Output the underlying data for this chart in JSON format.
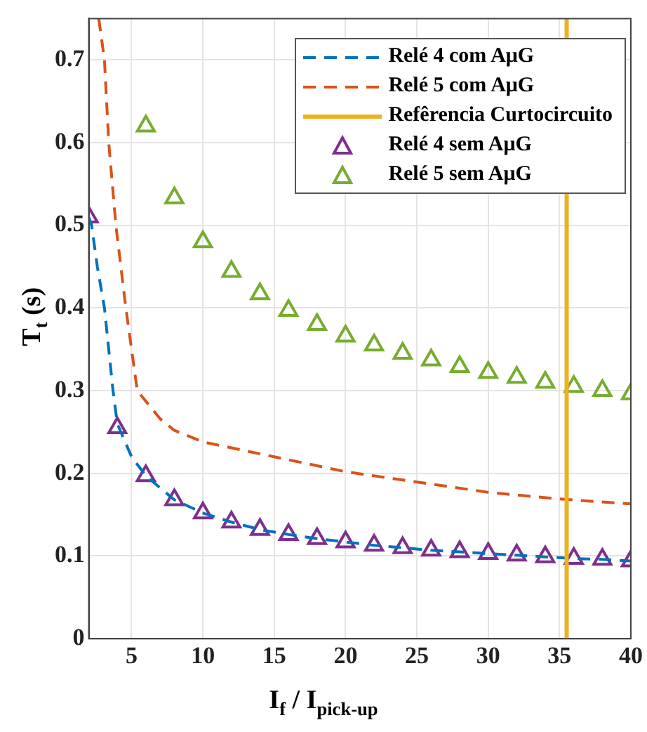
{
  "chart_data": {
    "type": "line",
    "xlabel": "I$_{f}$ / I$_{pick-up}$",
    "ylabel": "T$_{t}$ (s)",
    "xlim": [
      2,
      40
    ],
    "xticks": [
      5,
      10,
      15,
      20,
      25,
      30,
      35,
      40
    ],
    "ylim": [
      0,
      0.75
    ],
    "yticks": [
      0,
      0.1,
      0.2,
      0.3,
      0.4,
      0.5,
      0.6,
      0.7
    ],
    "grid": true,
    "legend": "top right",
    "series": [
      {
        "name": "Relé 4 com AμG",
        "line_style": "dashed",
        "color": "#0072bd",
        "x": [
          2,
          2.2,
          2.6,
          3.1,
          3.7,
          4,
          5,
          6,
          8,
          10,
          12,
          14,
          16,
          18,
          20,
          22,
          24,
          26,
          28,
          30,
          32,
          34,
          36,
          38,
          40
        ],
        "values": [
          0.51,
          0.5,
          0.45,
          0.4,
          0.3,
          0.26,
          0.22,
          0.197,
          0.168,
          0.152,
          0.141,
          0.132,
          0.126,
          0.121,
          0.117,
          0.113,
          0.11,
          0.107,
          0.105,
          0.103,
          0.101,
          0.099,
          0.097,
          0.096,
          0.094
        ]
      },
      {
        "name": "Relé 5 com AμG",
        "line_style": "dashed",
        "color": "#d95319",
        "x": [
          2.7,
          3.1,
          3.4,
          3.9,
          4.6,
          5.4,
          7,
          8,
          10,
          15,
          20,
          30,
          35,
          40
        ],
        "values": [
          0.75,
          0.7,
          0.6,
          0.5,
          0.4,
          0.3,
          0.266,
          0.252,
          0.238,
          0.22,
          0.202,
          0.177,
          0.169,
          0.163
        ]
      },
      {
        "name": "Relé 4 sem AμG",
        "type": "scatter",
        "marker": "triangle",
        "color": "#7e2f8e",
        "x": [
          2,
          4,
          6,
          8,
          10,
          12,
          14,
          16,
          18,
          20,
          22,
          24,
          26,
          28,
          30,
          32,
          34,
          36,
          38,
          40
        ],
        "values": [
          0.51,
          0.255,
          0.197,
          0.168,
          0.152,
          0.141,
          0.132,
          0.126,
          0.121,
          0.117,
          0.113,
          0.11,
          0.107,
          0.105,
          0.103,
          0.101,
          0.099,
          0.097,
          0.096,
          0.094
        ]
      },
      {
        "name": "Relé 5 sem AμG",
        "type": "scatter",
        "marker": "triangle",
        "color": "#77ac30",
        "x": [
          6,
          8,
          10,
          12,
          14,
          16,
          18,
          20,
          22,
          24,
          26,
          28,
          30,
          32,
          34,
          36,
          38,
          40
        ],
        "values": [
          0.62,
          0.533,
          0.48,
          0.444,
          0.417,
          0.397,
          0.38,
          0.366,
          0.355,
          0.345,
          0.337,
          0.329,
          0.322,
          0.316,
          0.31,
          0.305,
          0.3,
          0.296
        ]
      }
    ],
    "ref_lines": [
      {
        "axis": "x",
        "value": 35.5,
        "label": "Refêrencia Curtocircuito",
        "color": "#edb120",
        "line_style": "solid"
      }
    ]
  }
}
